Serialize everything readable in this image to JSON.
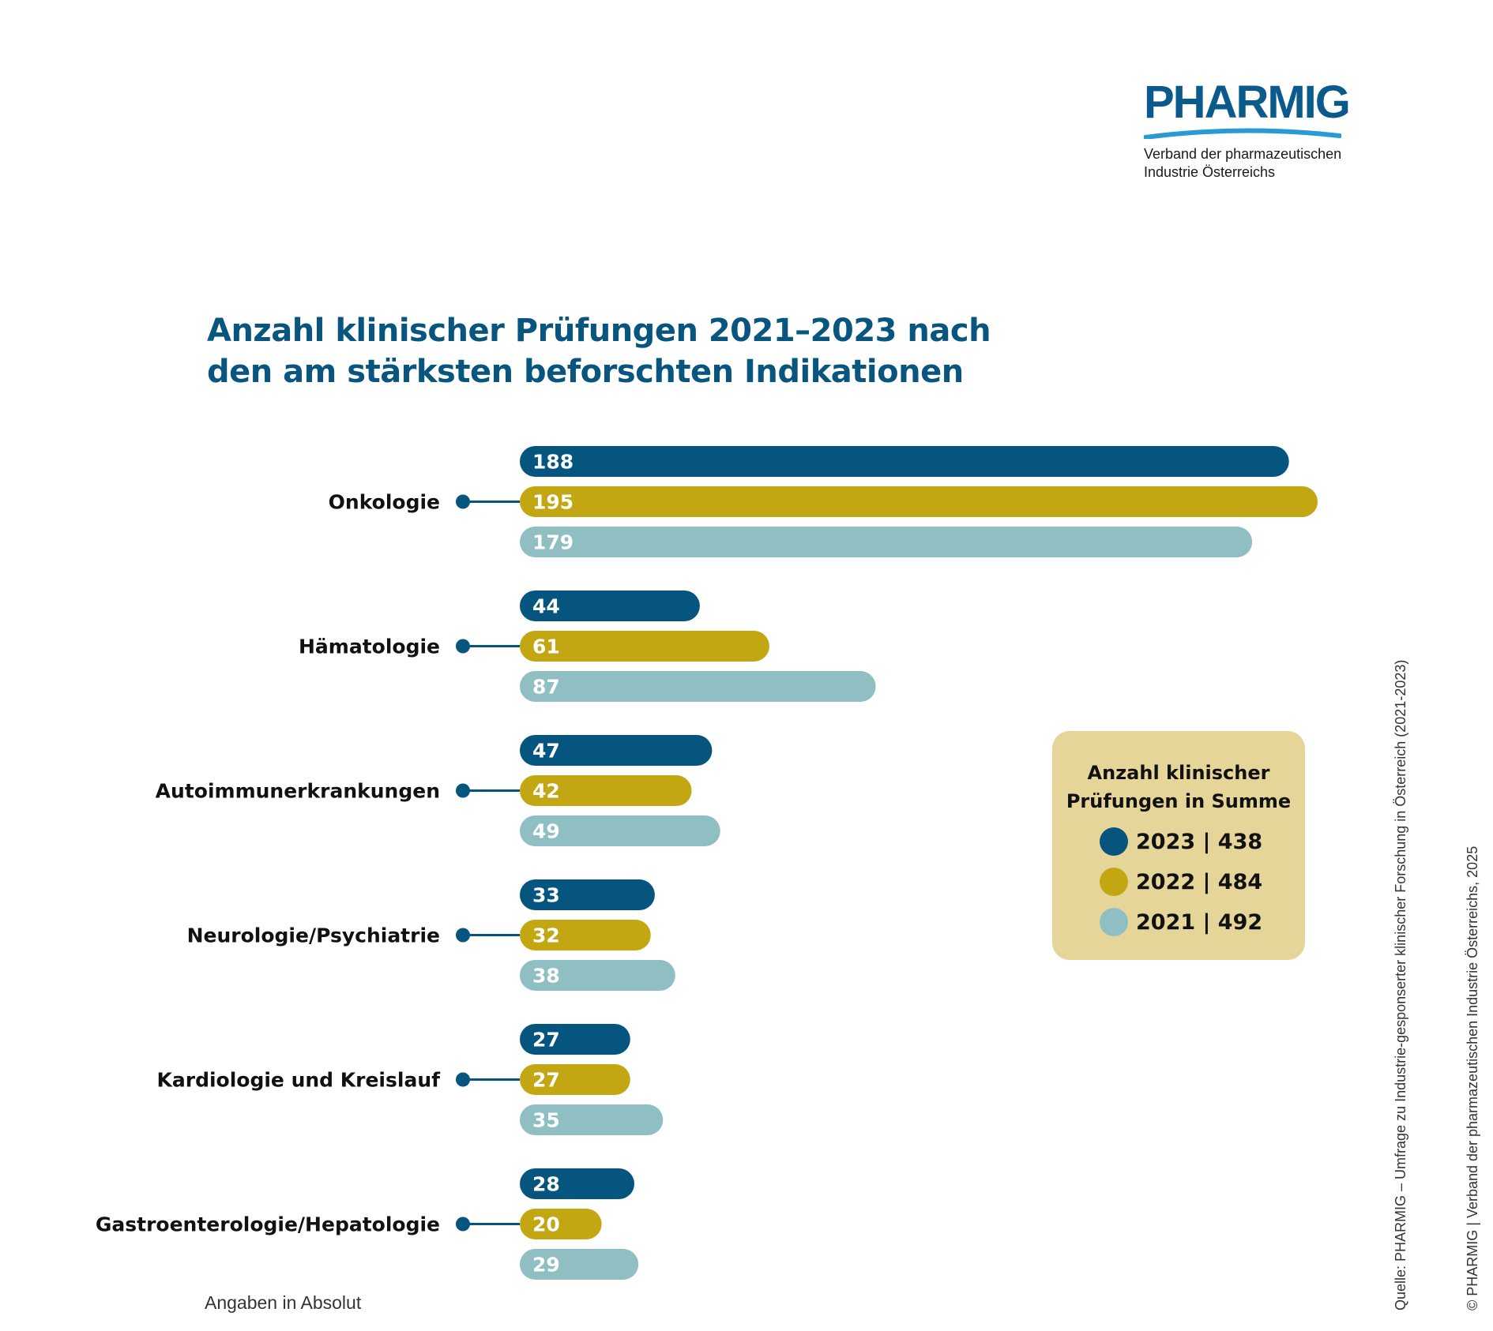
{
  "logo": {
    "name": "PHARMIG",
    "subtitle_line1": "Verband der pharmazeutischen",
    "subtitle_line2": "Industrie Österreichs"
  },
  "title": {
    "line1": "Anzahl klinischer Prüfungen 2021–2023 nach",
    "line2": "den am stärksten beforschten Indikationen"
  },
  "colors": {
    "y2023": "#06557f",
    "y2022": "#c2a712",
    "y2021": "#8fbfc2",
    "title": "#08567f",
    "legend_bg": "#e6d598"
  },
  "chart_data": {
    "type": "bar",
    "orientation": "horizontal",
    "categories": [
      "Onkologie",
      "Hämatologie",
      "Autoimmunerkrankungen",
      "Neurologie/Psychiatrie",
      "Kardiologie und Kreislauf",
      "Gastroenterologie/Hepatologie"
    ],
    "series": [
      {
        "name": "2023",
        "values": [
          188,
          44,
          47,
          33,
          27,
          28
        ]
      },
      {
        "name": "2022",
        "values": [
          195,
          61,
          42,
          32,
          27,
          20
        ]
      },
      {
        "name": "2021",
        "values": [
          179,
          87,
          49,
          38,
          35,
          29
        ]
      }
    ],
    "xlim": [
      0,
      195
    ],
    "grid": false,
    "data_labels": true
  },
  "legend": {
    "title_line1": "Anzahl klinischer",
    "title_line2": "Prüfungen in Summe",
    "items": [
      {
        "label": "2023 | 438"
      },
      {
        "label": "2022 | 484"
      },
      {
        "label": "2021 | 492"
      }
    ]
  },
  "note": "Angaben in Absolut",
  "source": "Quelle: PHARMIG – Umfrage zu Industrie-gesponserter klinischer Forschung in Österreich (2021-2023)",
  "copyright": "© PHARMIG | Verband der pharmazeutischen Industrie Österreichs, 2025"
}
